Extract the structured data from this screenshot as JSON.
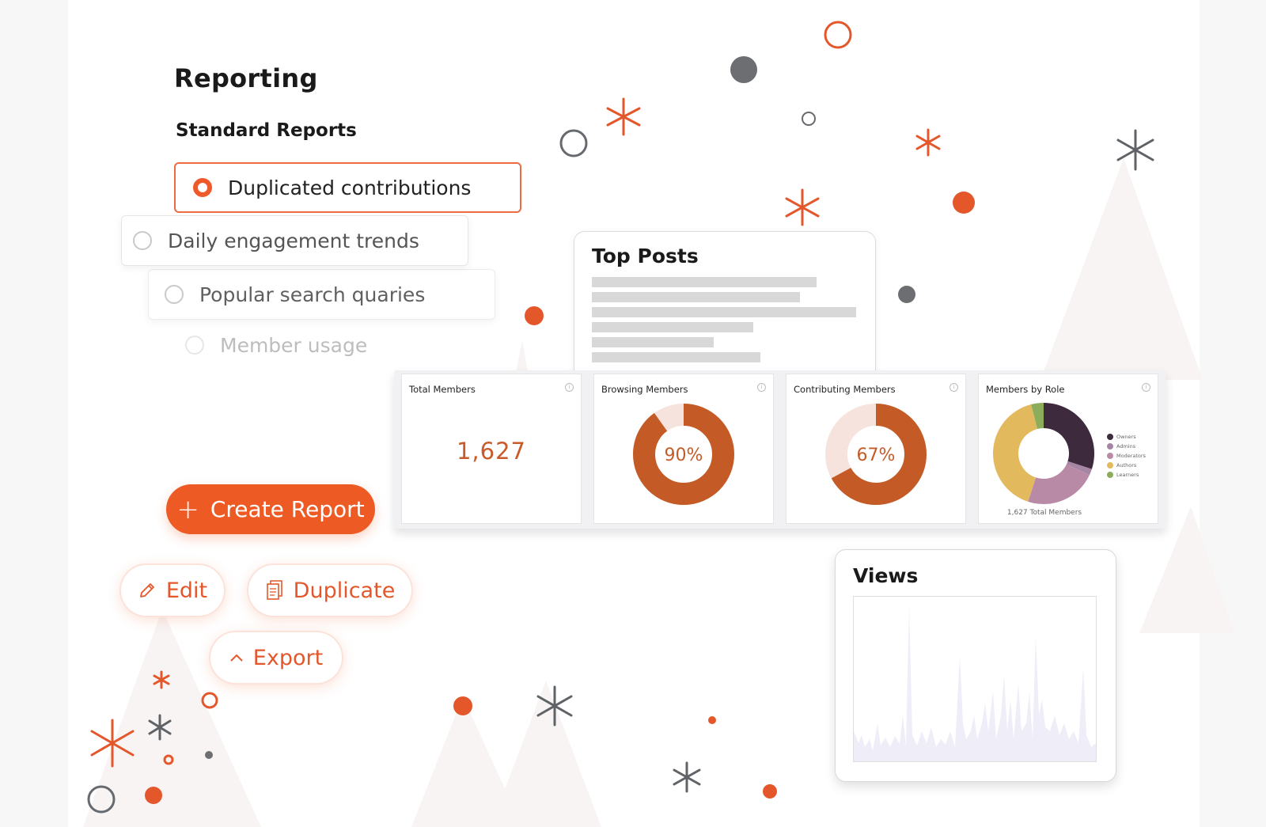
{
  "page": {
    "title": "Reporting",
    "subtitle": "Standard Reports"
  },
  "reports": [
    {
      "label": "Duplicated contributions",
      "selected": true
    },
    {
      "label": "Daily engagement trends",
      "selected": false
    },
    {
      "label": "Popular search quaries",
      "selected": false
    },
    {
      "label": "Member usage",
      "selected": false
    }
  ],
  "actions": {
    "create_icon": "plus-icon",
    "create_label": "Create Report",
    "edit_icon": "pencil-icon",
    "edit_label": "Edit",
    "duplicate_icon": "copy-icon",
    "duplicate_label": "Duplicate",
    "export_icon": "chevron-up-icon",
    "export_label": "Export"
  },
  "top_posts": {
    "title": "Top Posts"
  },
  "stats": {
    "total_members": {
      "title": "Total Members",
      "value": "1,627"
    },
    "browsing_members": {
      "title": "Browsing Members",
      "percent_label": "90%",
      "fraction": 0.9
    },
    "contributing_members": {
      "title": "Contributing Members",
      "percent_label": "67%",
      "fraction": 0.67
    },
    "members_by_role": {
      "title": "Members by Role",
      "caption": "1,627  Total Members",
      "legend": [
        "Owners",
        "Admins",
        "Moderators",
        "Authors",
        "Learners"
      ],
      "role_fractions": [
        0.3,
        0.02,
        0.23,
        0.41,
        0.04
      ],
      "role_colors": [
        "#3e2a3d",
        "#a486a4",
        "#b88aa6",
        "#e3b95e",
        "#8cad5c"
      ]
    }
  },
  "views": {
    "title": "Views"
  },
  "colors": {
    "accent": "#ee5a24",
    "donut_orange": "#c45b27",
    "donut_light": "#f6e3dd",
    "views_area": "#eeedf8"
  }
}
